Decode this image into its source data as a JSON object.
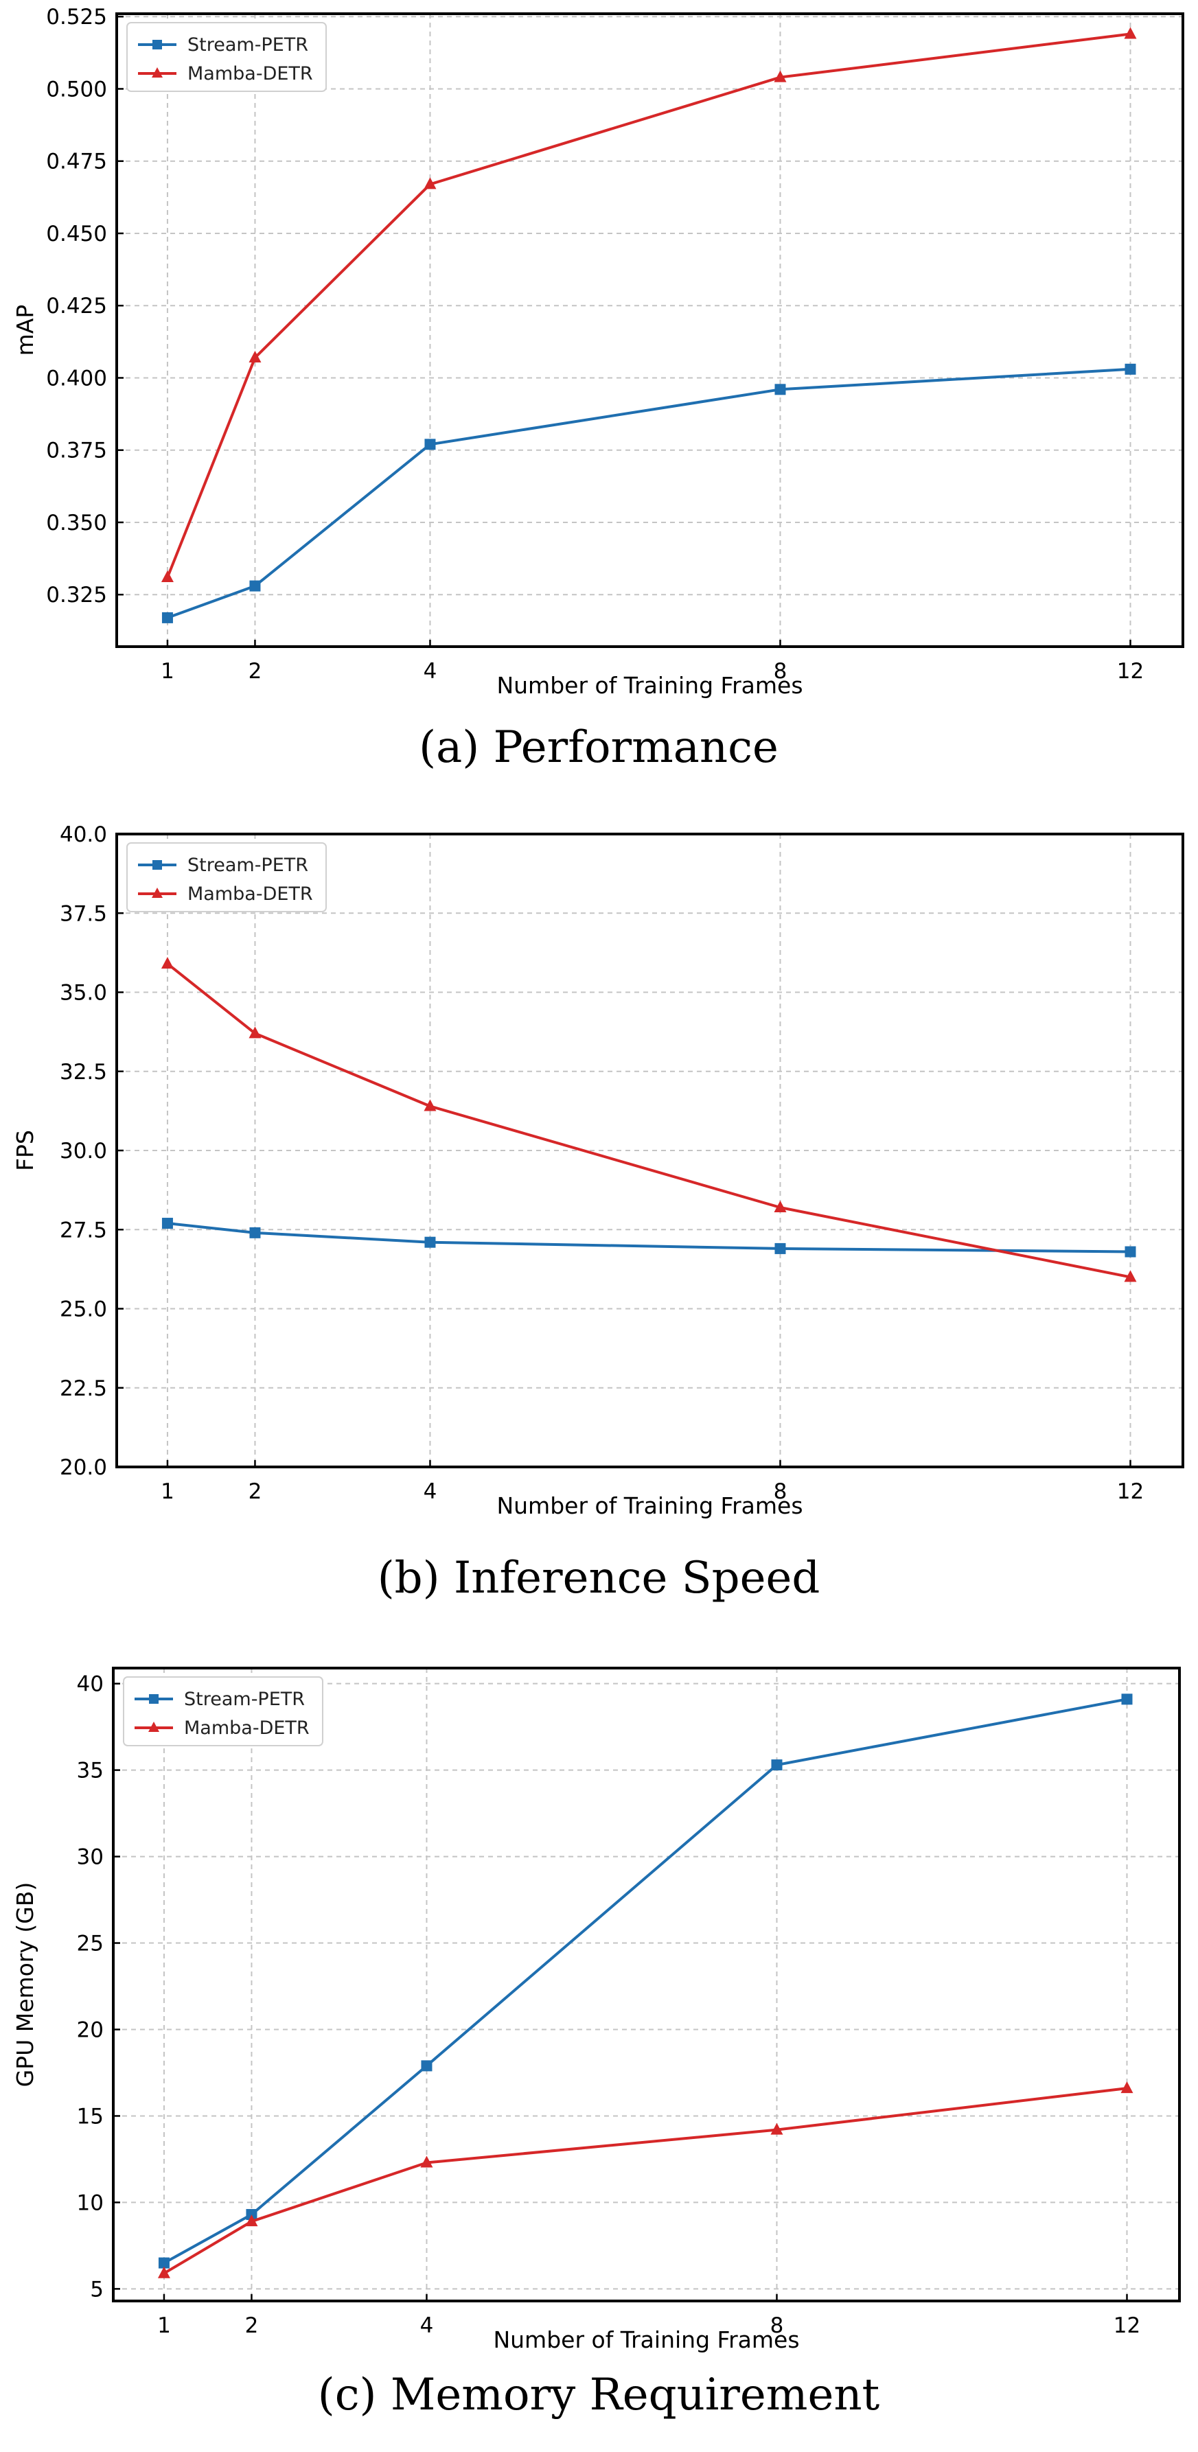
{
  "chart_data": [
    {
      "type": "line",
      "title": "(a) Performance",
      "xlabel": "Number of Training Frames",
      "ylabel": "mAP",
      "x": [
        1,
        2,
        4,
        8,
        12
      ],
      "xticks": [
        "1",
        "2",
        "4",
        "8",
        "12"
      ],
      "ylim": [
        0.307,
        0.526
      ],
      "yticks": [
        "0.325",
        "0.350",
        "0.375",
        "0.400",
        "0.425",
        "0.450",
        "0.475",
        "0.500",
        "0.525"
      ],
      "grid": true,
      "legend": "top-left",
      "series": [
        {
          "name": "Stream-PETR",
          "color": "#1f6fb0",
          "marker": "square",
          "values": [
            0.317,
            0.328,
            0.377,
            0.396,
            0.403
          ]
        },
        {
          "name": "Mamba-DETR",
          "color": "#d62728",
          "marker": "triangle",
          "values": [
            0.331,
            0.407,
            0.467,
            0.504,
            0.519
          ]
        }
      ]
    },
    {
      "type": "line",
      "title": "(b) Inference Speed",
      "xlabel": "Number of Training Frames",
      "ylabel": "FPS",
      "x": [
        1,
        2,
        4,
        8,
        12
      ],
      "xticks": [
        "1",
        "2",
        "4",
        "8",
        "12"
      ],
      "ylim": [
        20.0,
        40.0
      ],
      "yticks": [
        "20.0",
        "22.5",
        "25.0",
        "27.5",
        "30.0",
        "32.5",
        "35.0",
        "37.5",
        "40.0"
      ],
      "grid": true,
      "legend": "top-left",
      "series": [
        {
          "name": "Stream-PETR",
          "color": "#1f6fb0",
          "marker": "square",
          "values": [
            27.7,
            27.4,
            27.1,
            26.9,
            26.8
          ]
        },
        {
          "name": "Mamba-DETR",
          "color": "#d62728",
          "marker": "triangle",
          "values": [
            35.9,
            33.7,
            31.4,
            28.2,
            26.0
          ]
        }
      ]
    },
    {
      "type": "line",
      "title": "(c) Memory Requirement",
      "xlabel": "Number of Training Frames",
      "ylabel": "GPU Memory (GB)",
      "x": [
        1,
        2,
        4,
        8,
        12
      ],
      "xticks": [
        "1",
        "2",
        "4",
        "8",
        "12"
      ],
      "ylim": [
        4.3,
        40.9
      ],
      "yticks": [
        "5",
        "10",
        "15",
        "20",
        "25",
        "30",
        "35",
        "40"
      ],
      "grid": true,
      "legend": "top-left",
      "series": [
        {
          "name": "Stream-PETR",
          "color": "#1f6fb0",
          "marker": "square",
          "values": [
            6.5,
            9.3,
            17.9,
            35.3,
            39.1
          ]
        },
        {
          "name": "Mamba-DETR",
          "color": "#d62728",
          "marker": "triangle",
          "values": [
            5.9,
            8.9,
            12.3,
            14.2,
            16.6
          ]
        }
      ]
    }
  ]
}
